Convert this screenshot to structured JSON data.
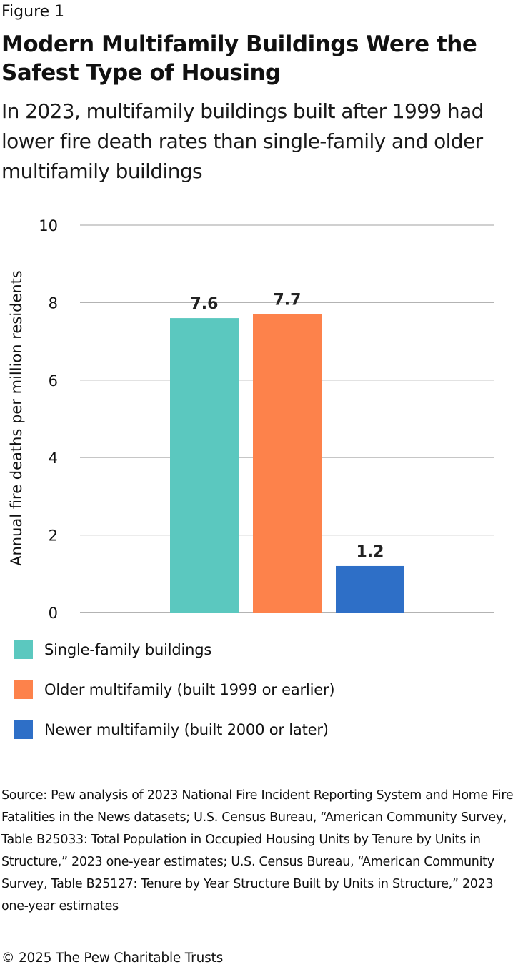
{
  "figure_label": "Figure 1",
  "title": "Modern Multifamily Buildings Were the Safest Type of Housing",
  "subtitle": "In 2023, multifamily buildings built after 1999 had lower fire death rates than single-family and older multifamily buildings",
  "chart_data": {
    "type": "bar",
    "categories": [
      "Single-family buildings",
      "Older multifamily (built 1999 or earlier)",
      "Newer multifamily (built 2000 or later)"
    ],
    "values": [
      7.6,
      7.7,
      1.2
    ],
    "data_labels": [
      "7.6",
      "7.7",
      "1.2"
    ],
    "colors": [
      "#5bc8bf",
      "#fd824b",
      "#2e6fc7"
    ],
    "ylabel": "Annual fire deaths per million residents",
    "xlabel": "",
    "ylim": [
      0,
      10
    ],
    "yticks": [
      0,
      2,
      4,
      6,
      8,
      10
    ],
    "grid": true,
    "legend_position": "bottom"
  },
  "legend": [
    {
      "label": "Single-family buildings",
      "color": "#5bc8bf"
    },
    {
      "label": "Older multifamily (built 1999 or earlier)",
      "color": "#fd824b"
    },
    {
      "label": "Newer multifamily (built 2000 or later)",
      "color": "#2e6fc7"
    }
  ],
  "source": "Source: Pew analysis of 2023 National Fire Incident Reporting System and Home Fire Fatalities in the News datasets; U.S. Census Bureau, “American Community Survey, Table B25033: Total Population in Occupied Housing Units by Tenure by Units in Structure,” 2023 one-year estimates; U.S. Census Bureau, “American Community Survey, Table B25127: Tenure by Year Structure Built by Units in Structure,” 2023 one-year estimates",
  "copyright": "© 2025 The Pew Charitable Trusts"
}
